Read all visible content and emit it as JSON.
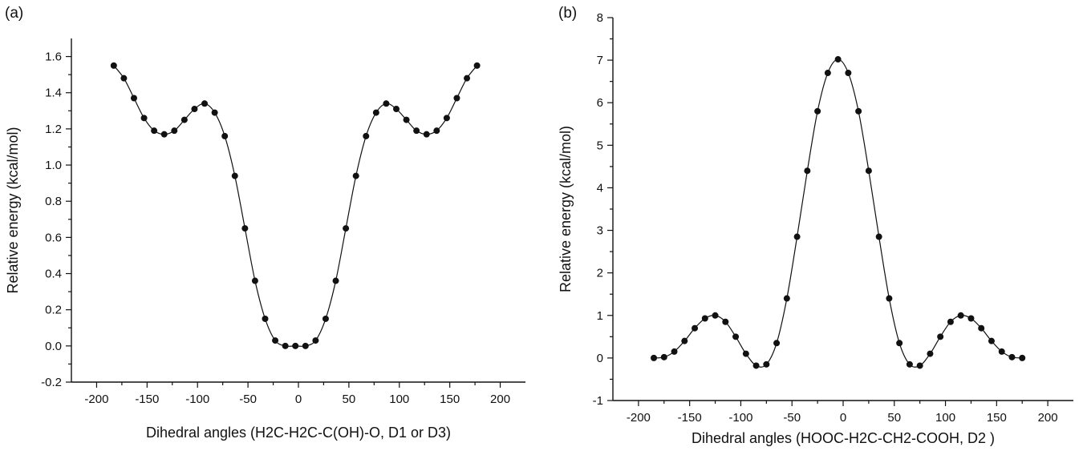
{
  "chart_data": [
    {
      "panel_label": "(a)",
      "type": "line",
      "xlabel": "Dihedral angles (H2C-H2C-C(OH)-O, D1 or D3)",
      "ylabel": "Relative energy (kcal/mol)",
      "xlim": [
        -225,
        225
      ],
      "ylim": [
        -0.2,
        1.7
      ],
      "xticks": [
        -200,
        -150,
        -100,
        -50,
        0,
        50,
        100,
        150,
        200
      ],
      "yticks": [
        -0.2,
        0.0,
        0.2,
        0.4,
        0.6,
        0.8,
        1.0,
        1.2,
        1.4,
        1.6
      ],
      "ytick_labels": [
        "-0.2",
        "0.0",
        "0.2",
        "0.4",
        "0.6",
        "0.8",
        "1.0",
        "1.2",
        "1.4",
        "1.6"
      ],
      "grid": false,
      "marker": "circle",
      "series": [
        {
          "x": [
            -183,
            -173,
            -163,
            -153,
            -143,
            -133,
            -123,
            -113,
            -103,
            -93,
            -83,
            -73,
            -63,
            -53,
            -43,
            -33,
            -23,
            -13,
            -3,
            7,
            17,
            27,
            37,
            47,
            57,
            67,
            77,
            87,
            97,
            107,
            117,
            127,
            137,
            147,
            157,
            167,
            177
          ],
          "y": [
            1.55,
            1.48,
            1.37,
            1.26,
            1.19,
            1.17,
            1.19,
            1.25,
            1.31,
            1.34,
            1.29,
            1.16,
            0.94,
            0.65,
            0.36,
            0.15,
            0.03,
            0.0,
            0.0,
            0.0,
            0.03,
            0.15,
            0.36,
            0.65,
            0.94,
            1.16,
            1.29,
            1.34,
            1.31,
            1.25,
            1.19,
            1.17,
            1.19,
            1.26,
            1.37,
            1.48,
            1.55
          ]
        }
      ]
    },
    {
      "panel_label": "(b)",
      "type": "line",
      "xlabel": "Dihedral angles (HOOC-H2C-CH2-COOH, D2 )",
      "ylabel": "Relative energy (kcal/mol)",
      "xlim": [
        -225,
        225
      ],
      "ylim": [
        -1,
        8
      ],
      "xticks": [
        -200,
        -150,
        -100,
        -50,
        0,
        50,
        100,
        150,
        200
      ],
      "yticks": [
        -1,
        0,
        1,
        2,
        3,
        4,
        5,
        6,
        7,
        8
      ],
      "ytick_labels": [
        "-1",
        "0",
        "1",
        "2",
        "3",
        "4",
        "5",
        "6",
        "7",
        "8"
      ],
      "grid": false,
      "marker": "circle",
      "series": [
        {
          "x": [
            -185,
            -175,
            -165,
            -155,
            -145,
            -135,
            -125,
            -115,
            -105,
            -95,
            -85,
            -75,
            -65,
            -55,
            -45,
            -35,
            -25,
            -15,
            -5,
            5,
            15,
            25,
            35,
            45,
            55,
            65,
            75,
            85,
            95,
            105,
            115,
            125,
            135,
            145,
            155,
            165,
            175
          ],
          "y": [
            0.0,
            0.02,
            0.15,
            0.4,
            0.7,
            0.93,
            1.0,
            0.85,
            0.5,
            0.1,
            -0.18,
            -0.15,
            0.35,
            1.4,
            2.85,
            4.4,
            5.8,
            6.7,
            7.02,
            6.7,
            5.8,
            4.4,
            2.85,
            1.4,
            0.35,
            -0.15,
            -0.18,
            0.1,
            0.5,
            0.85,
            1.0,
            0.93,
            0.7,
            0.4,
            0.15,
            0.02,
            0.0
          ]
        }
      ]
    }
  ]
}
